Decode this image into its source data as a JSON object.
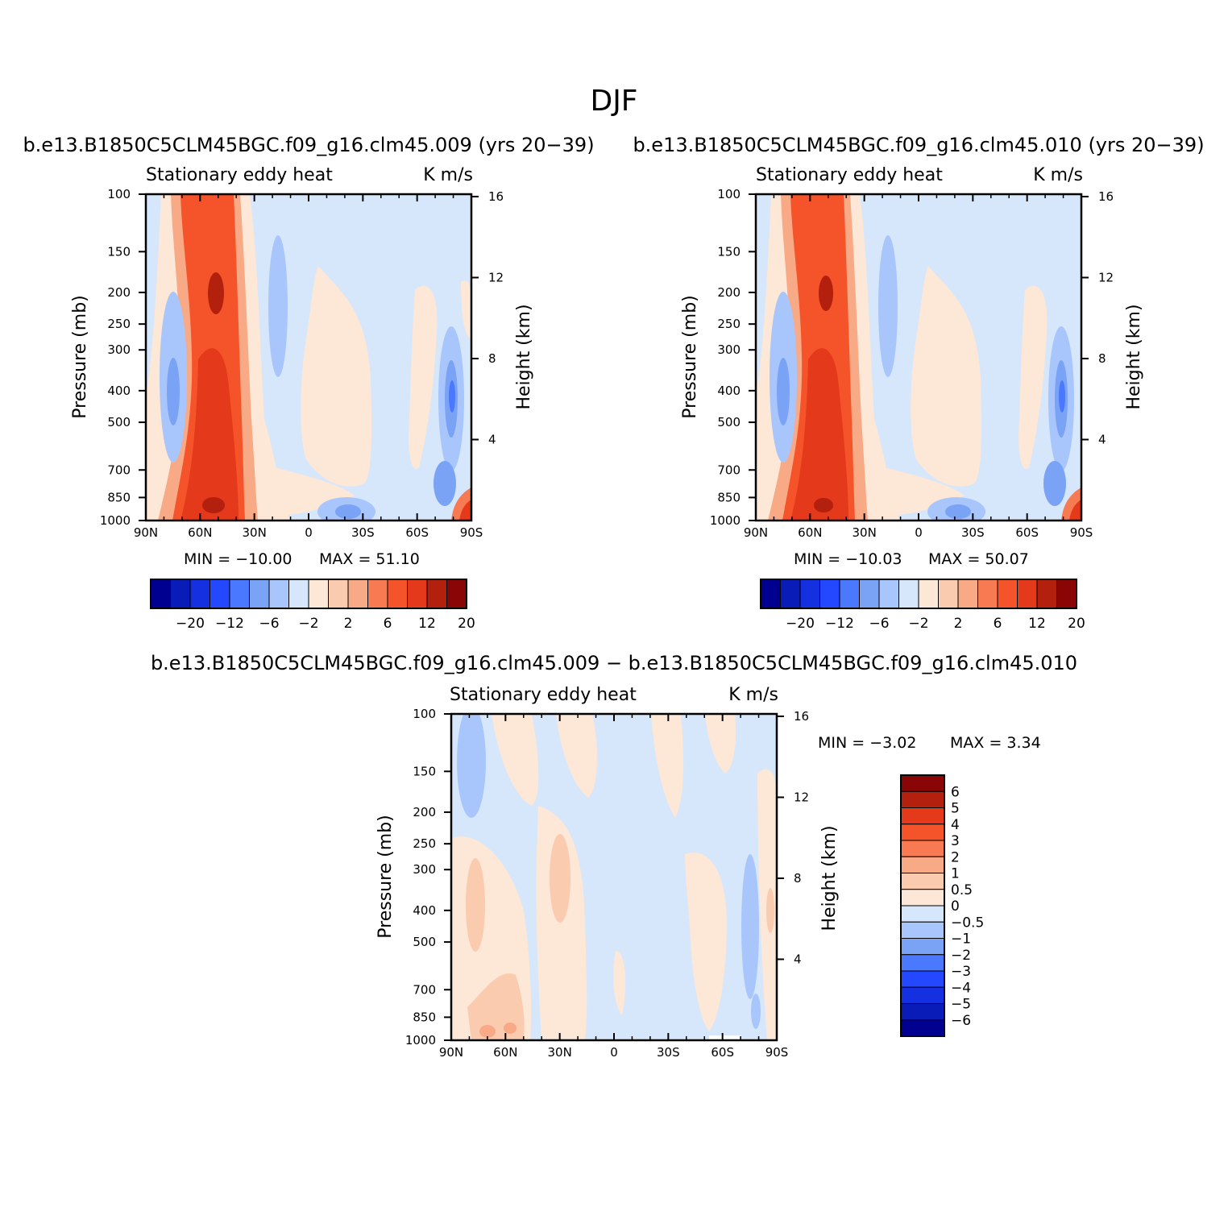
{
  "figure": {
    "title": "DJF"
  },
  "colors": {
    "blue": [
      "#000090",
      "#0a1cb8",
      "#1530e0",
      "#2448ff",
      "#4a78ff",
      "#7aa2f5",
      "#a9c6fc",
      "#d6e7fb"
    ],
    "red": [
      "#fde7d6",
      "#fbcbb0",
      "#f8a986",
      "#f77a53",
      "#f5532a",
      "#e4391a",
      "#b3200e",
      "#8a0606"
    ]
  },
  "chart_data": [
    {
      "type": "heatmap",
      "panel": "top-left",
      "title": "b.e13.B1850C5CLM45BGC.f09_g16.clm45.009 (yrs 20−39)",
      "variable": "Stationary eddy heat",
      "units": "K m/s",
      "xlabel": "",
      "ylabel": "Pressure (mb)",
      "ylabel_right": "Height (km)",
      "x_ticks": [
        "90N",
        "60N",
        "30N",
        "0",
        "30S",
        "60S",
        "90S"
      ],
      "y_ticks": [
        "100",
        "150",
        "200",
        "250",
        "300",
        "400",
        "500",
        "700",
        "850",
        "1000"
      ],
      "y_ticks_right": [
        "16",
        "12",
        "8",
        "4"
      ],
      "y_scale": "log",
      "min": -10.0,
      "max": 51.1,
      "min_text": "MIN = −10.00",
      "max_text": "MAX = 51.10",
      "colorbar_labels": [
        "−20",
        "−12",
        "−6",
        "−2",
        "2",
        "6",
        "12",
        "20"
      ],
      "colorbar_orientation": "horizontal"
    },
    {
      "type": "heatmap",
      "panel": "top-right",
      "title": "b.e13.B1850C5CLM45BGC.f09_g16.clm45.010 (yrs 20−39)",
      "variable": "Stationary eddy heat",
      "units": "K m/s",
      "xlabel": "",
      "ylabel": "Pressure (mb)",
      "ylabel_right": "Height (km)",
      "x_ticks": [
        "90N",
        "60N",
        "30N",
        "0",
        "30S",
        "60S",
        "90S"
      ],
      "y_ticks": [
        "100",
        "150",
        "200",
        "250",
        "300",
        "400",
        "500",
        "700",
        "850",
        "1000"
      ],
      "y_ticks_right": [
        "16",
        "12",
        "8",
        "4"
      ],
      "y_scale": "log",
      "min": -10.03,
      "max": 50.07,
      "min_text": "MIN = −10.03",
      "max_text": "MAX = 50.07",
      "colorbar_labels": [
        "−20",
        "−12",
        "−6",
        "−2",
        "2",
        "6",
        "12",
        "20"
      ],
      "colorbar_orientation": "horizontal"
    },
    {
      "type": "heatmap",
      "panel": "bottom",
      "title": "b.e13.B1850C5CLM45BGC.f09_g16.clm45.009 − b.e13.B1850C5CLM45BGC.f09_g16.clm45.010",
      "variable": "Stationary eddy heat",
      "units": "K m/s",
      "xlabel": "",
      "ylabel": "Pressure (mb)",
      "ylabel_right": "Height (km)",
      "x_ticks": [
        "90N",
        "60N",
        "30N",
        "0",
        "30S",
        "60S",
        "90S"
      ],
      "y_ticks": [
        "100",
        "150",
        "200",
        "250",
        "300",
        "400",
        "500",
        "700",
        "850",
        "1000"
      ],
      "y_ticks_right": [
        "16",
        "12",
        "8",
        "4"
      ],
      "y_scale": "log",
      "min": -3.02,
      "max": 3.34,
      "min_text": "MIN = −3.02",
      "max_text": "MAX = 3.34",
      "colorbar_labels": [
        "6",
        "5",
        "4",
        "3",
        "2",
        "1",
        "0.5",
        "0",
        "−0.5",
        "−1",
        "−2",
        "−3",
        "−4",
        "−5",
        "−6"
      ],
      "colorbar_orientation": "vertical"
    }
  ]
}
